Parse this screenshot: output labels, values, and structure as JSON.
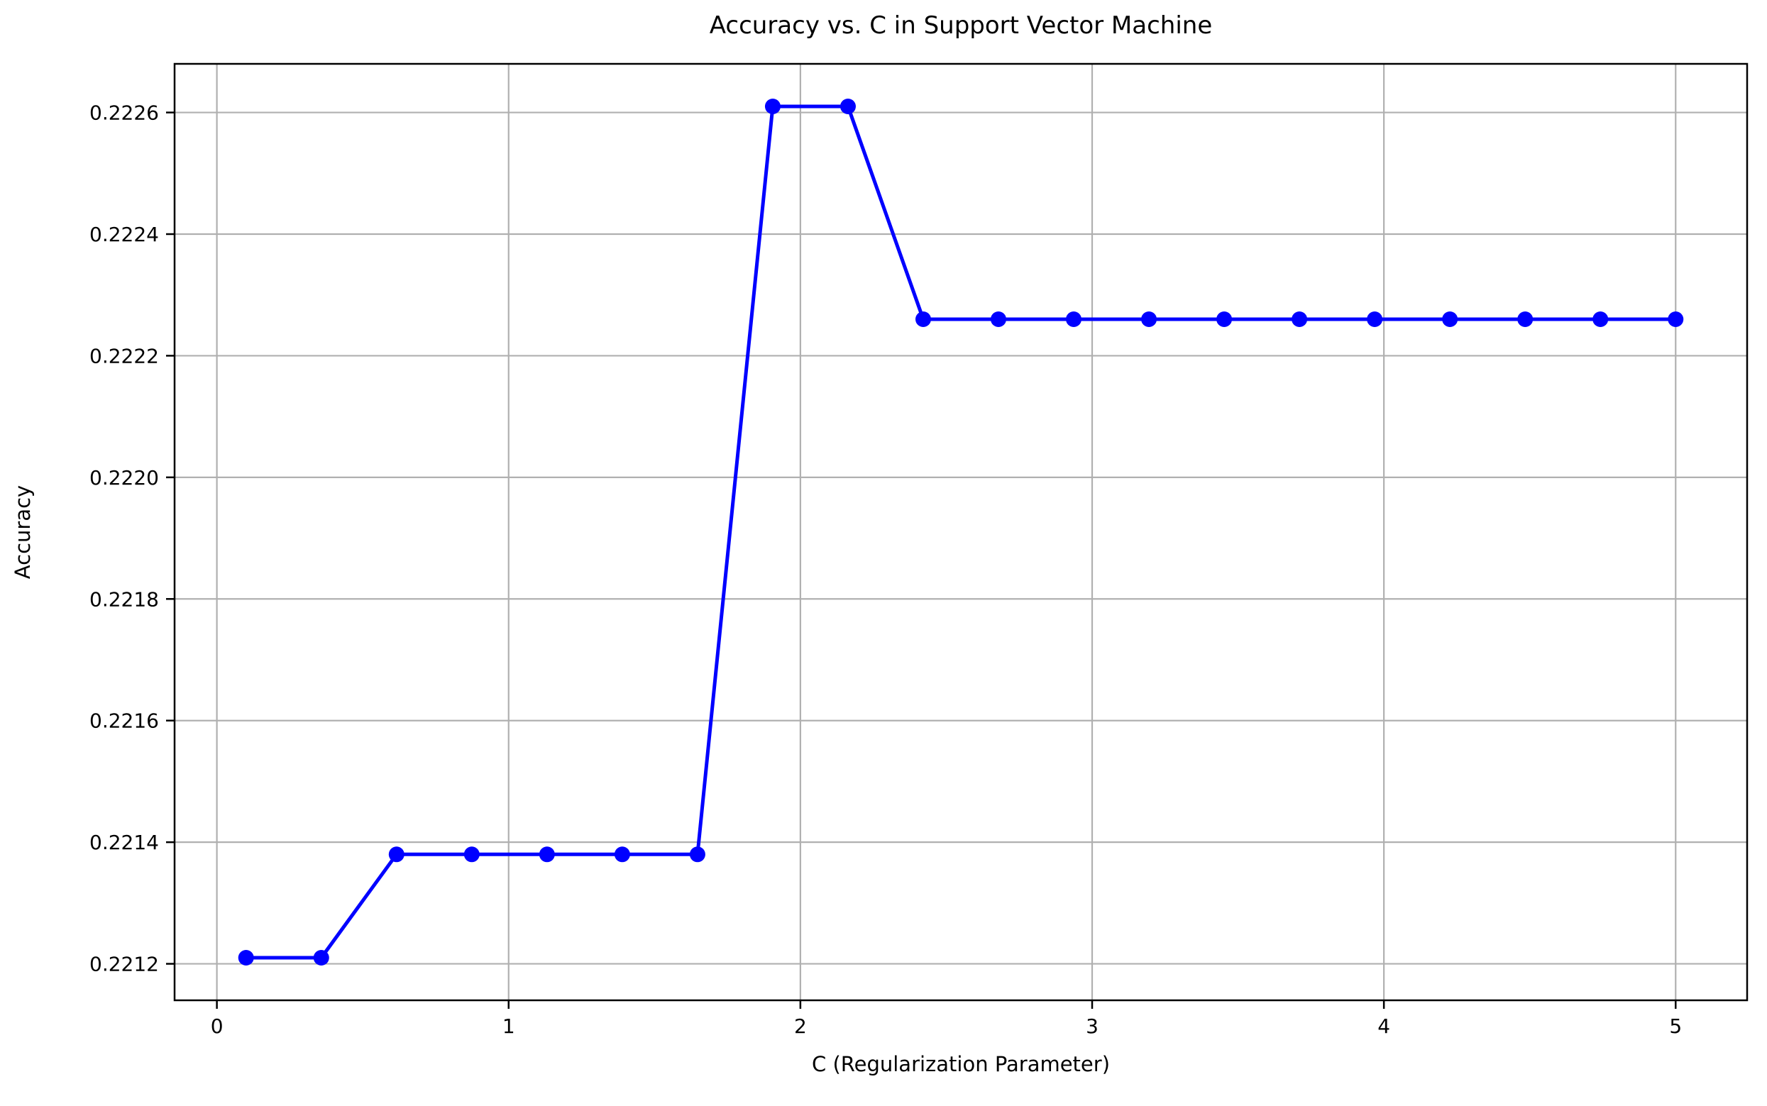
{
  "chart_data": {
    "type": "line",
    "title": "Accuracy vs. C in Support Vector Machine",
    "xlabel": "C (Regularization Parameter)",
    "ylabel": "Accuracy",
    "series": [
      {
        "name": "accuracy",
        "x": [
          0.1,
          0.3579,
          0.6158,
          0.8737,
          1.1316,
          1.3895,
          1.6474,
          1.9053,
          2.1632,
          2.4211,
          2.6789,
          2.9368,
          3.1947,
          3.4526,
          3.7105,
          3.9684,
          4.2263,
          4.4842,
          4.7421,
          5.0
        ],
        "y": [
          0.22121,
          0.22121,
          0.22138,
          0.22138,
          0.22138,
          0.22138,
          0.22138,
          0.22261,
          0.22261,
          0.22226,
          0.22226,
          0.22226,
          0.22226,
          0.22226,
          0.22226,
          0.22226,
          0.22226,
          0.22226,
          0.22226,
          0.22226
        ]
      }
    ],
    "xlim": [
      -0.145,
      5.245
    ],
    "ylim": [
      0.22114,
      0.22268
    ],
    "xticks": {
      "values": [
        0,
        1,
        2,
        3,
        4,
        5
      ],
      "labels": [
        "0",
        "1",
        "2",
        "3",
        "4",
        "5"
      ]
    },
    "yticks": {
      "values": [
        0.2212,
        0.2214,
        0.2216,
        0.2218,
        0.222,
        0.2222,
        0.2224,
        0.2226
      ],
      "labels": [
        "0.2212",
        "0.2214",
        "0.2216",
        "0.2218",
        "0.2220",
        "0.2222",
        "0.2224",
        "0.2226"
      ]
    },
    "grid": true,
    "legend": "none",
    "marker": "o",
    "colors": {
      "line": "#0000ff",
      "marker": "#0000ff",
      "grid": "#b0b0b0",
      "spine": "#000000",
      "text": "#000000",
      "background": "#ffffff"
    }
  }
}
